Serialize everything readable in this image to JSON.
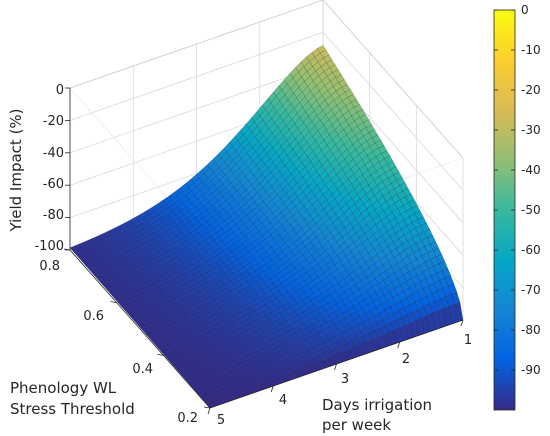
{
  "chart_data": {
    "type": "surface",
    "zlabel": "Yield Impact (%)",
    "xlabel_lines": [
      "Days irrigation",
      "per week"
    ],
    "ylabel_lines": [
      "Phenology WL",
      "Stress Threshold"
    ],
    "xlim": [
      1,
      5
    ],
    "ylim": [
      0.2,
      0.8
    ],
    "zlim": [
      -100,
      0
    ],
    "xticks": [
      "1",
      "2",
      "3",
      "4",
      "5"
    ],
    "yticks": [
      "0.2",
      "0.4",
      "0.6",
      "0.8"
    ],
    "zticks": [
      "0",
      "-20",
      "-40",
      "-60",
      "-80",
      "-100"
    ],
    "grid": true,
    "colormap": "parula",
    "colorbar": {
      "location": "right",
      "range": [
        -100,
        0
      ],
      "ticks": [
        "0",
        "-10",
        "-20",
        "-30",
        "-40",
        "-50",
        "-60",
        "-70",
        "-80",
        "-90"
      ]
    },
    "surface_samples": [
      {
        "days": 1,
        "threshold": 0.8,
        "yield_impact": -28
      },
      {
        "days": 1,
        "threshold": 0.5,
        "yield_impact": -52
      },
      {
        "days": 1,
        "threshold": 0.2,
        "yield_impact": -100
      },
      {
        "days": 2,
        "threshold": 0.8,
        "yield_impact": -44
      },
      {
        "days": 3,
        "threshold": 0.8,
        "yield_impact": -80
      },
      {
        "days": 4,
        "threshold": 0.8,
        "yield_impact": -97
      },
      {
        "days": 5,
        "threshold": 0.8,
        "yield_impact": -100
      },
      {
        "days": 5,
        "threshold": 0.2,
        "yield_impact": -100
      }
    ],
    "colors": {
      "parula": [
        "#352a87",
        "#0363e1",
        "#1485d4",
        "#06a7c6",
        "#38b99e",
        "#92bf73",
        "#d9ba56",
        "#fcce2e",
        "#f9fb0e"
      ],
      "text": "#262626",
      "grid": "#d9d9d9"
    }
  }
}
